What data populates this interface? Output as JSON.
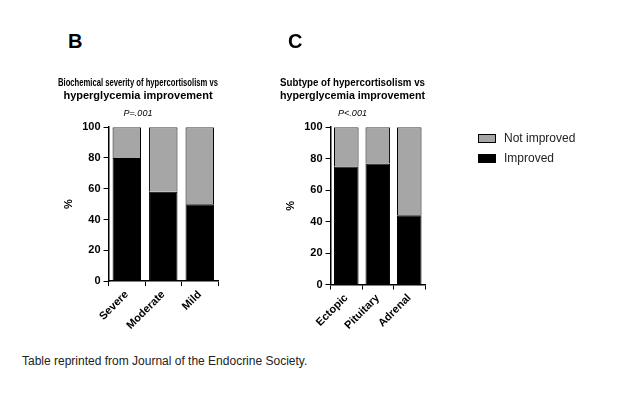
{
  "chart_data": [
    {
      "type": "bar",
      "annotations": [
        "B"
      ],
      "title": "Biochemical severity of hypercortisolism vs hyperglycemia improvement",
      "subtitle": "P=.001",
      "y_label": "%",
      "categories": [
        "Severe",
        "Moderate",
        "Mild"
      ],
      "series": [
        {
          "name": "Improved",
          "color": "#000000",
          "values": [
            80,
            58,
            50
          ]
        },
        {
          "name": "Not improved",
          "color": "#a6a6a6",
          "values": [
            20,
            42,
            50
          ]
        }
      ],
      "stacked": true,
      "ylim": [
        0,
        100
      ],
      "yticks": [
        0,
        20,
        40,
        60,
        80,
        100
      ],
      "grid": false
    },
    {
      "type": "bar",
      "annotations": [
        "C"
      ],
      "title": "Subtype of hypercortisolism vs hyperglycemia improvement",
      "subtitle": "P<.001",
      "y_label": "%",
      "categories": [
        "Ectopic",
        "Pituitary",
        "Adrenal"
      ],
      "series": [
        {
          "name": "Improved",
          "color": "#000000",
          "values": [
            75,
            77,
            44
          ]
        },
        {
          "name": "Not improved",
          "color": "#a6a6a6",
          "values": [
            25,
            23,
            56
          ]
        }
      ],
      "stacked": true,
      "ylim": [
        0,
        100
      ],
      "yticks": [
        0,
        20,
        40,
        60,
        80,
        100
      ],
      "grid": false,
      "legend": "right"
    }
  ],
  "caption": "Table reprinted from Journal of the Endocrine Society."
}
